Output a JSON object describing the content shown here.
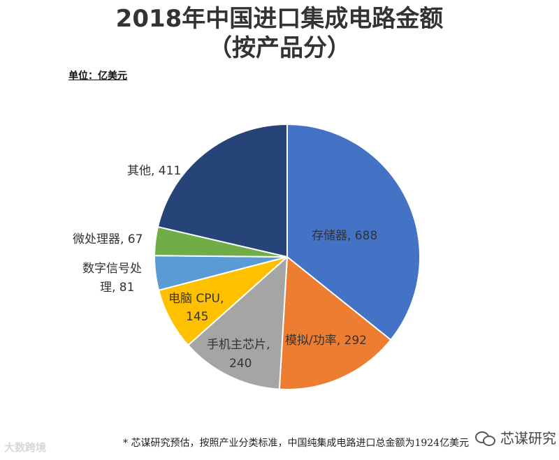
{
  "title_line1": "2018年中国进口集成电路金额",
  "title_line2": "（按产品分）",
  "unit_label": "单位：亿美元",
  "chart_data": {
    "type": "pie",
    "slices": [
      {
        "label": "存储器",
        "value": 688,
        "color": "#4472c4"
      },
      {
        "label": "模拟/功率",
        "value": 292,
        "color": "#ed7d31"
      },
      {
        "label": "手机主芯片",
        "value": 240,
        "color": "#a5a5a5"
      },
      {
        "label": "电脑 CPU",
        "value": 145,
        "color": "#ffc000"
      },
      {
        "label": "数字信号处理",
        "value": 81,
        "color": "#5b9bd5"
      },
      {
        "label": "微处理器",
        "value": 67,
        "color": "#70ad47"
      },
      {
        "label": "其他",
        "value": 411,
        "color": "#264478"
      }
    ],
    "data_labels": [
      "存储器, 688",
      "模拟/功率, 292",
      "手机主芯片,",
      "240",
      "电脑 CPU,",
      "145",
      "数字信号处",
      "理, 81",
      "微处理器, 67",
      "其他, 411"
    ]
  },
  "footnote": "* 芯谋研究预估，按照产业分类标准，中国纯集成电路进口总金额为1924亿美元",
  "watermark_left": "大数跨境",
  "watermark_right": "芯谋研究"
}
